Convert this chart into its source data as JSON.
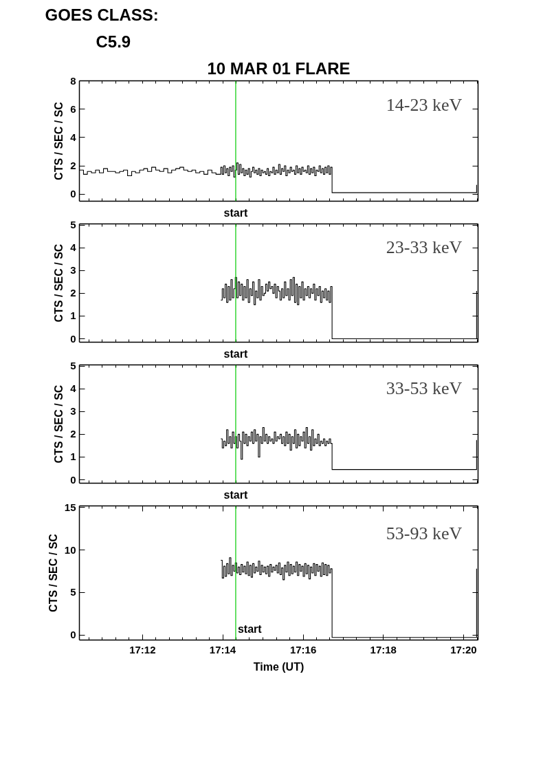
{
  "chart_data": [
    {
      "type": "step",
      "title": "10 MAR 01 FLARE",
      "subtitle": "14-23 keV",
      "ylabel": "CTS / SEC / SC",
      "annotations": [
        "GOES CLASS:",
        "C5.9"
      ],
      "color": "#000000",
      "xlim": [
        17.1738,
        17.3393
      ],
      "ylim": [
        -0.5,
        8
      ],
      "yticks": [
        0,
        2,
        4,
        6,
        8
      ],
      "tick_labels": "y",
      "xticks": [
        {
          "value": 17.1778,
          "label": null
        },
        {
          "value": 17.1833,
          "label": null
        },
        {
          "value": 17.1889,
          "label": null
        },
        {
          "value": 17.1944,
          "label": null
        },
        {
          "value": 17.2,
          "label": null
        },
        {
          "value": 17.2056,
          "label": null
        },
        {
          "value": 17.2111,
          "label": null
        },
        {
          "value": 17.2167,
          "label": null
        },
        {
          "value": 17.2222,
          "label": null
        },
        {
          "value": 17.2278,
          "label": null
        },
        {
          "value": 17.2333,
          "label": null
        },
        {
          "value": 17.2389,
          "label": null
        },
        {
          "value": 17.2444,
          "label": null
        },
        {
          "value": 17.25,
          "label": null
        },
        {
          "value": 17.2556,
          "label": null
        },
        {
          "value": 17.2611,
          "label": null
        },
        {
          "value": 17.2667,
          "label": null
        },
        {
          "value": 17.2722,
          "label": null
        },
        {
          "value": 17.2778,
          "label": null
        },
        {
          "value": 17.2833,
          "label": null
        },
        {
          "value": 17.2889,
          "label": null
        },
        {
          "value": 17.2944,
          "label": null
        },
        {
          "value": 17.3,
          "label": null
        },
        {
          "value": 17.3056,
          "label": null
        },
        {
          "value": 17.3111,
          "label": null
        },
        {
          "value": 17.3167,
          "label": null
        },
        {
          "value": 17.3222,
          "label": null
        },
        {
          "value": 17.3278,
          "label": null
        },
        {
          "value": 17.3333,
          "label": null
        },
        {
          "value": 17.3389,
          "label": null
        }
      ],
      "ref_lines": [
        {
          "axis": "x",
          "value": 17.2387,
          "label": "start",
          "color": "#00cc00"
        }
      ],
      "x": [
        17.1738,
        17.1755,
        17.1771,
        17.1788,
        17.1805,
        17.1821,
        17.1838,
        17.1855,
        17.1871,
        17.1888,
        17.1905,
        17.1921,
        17.1938,
        17.1955,
        17.1971,
        17.1988,
        17.2005,
        17.2021,
        17.2038,
        17.2055,
        17.2071,
        17.2088,
        17.2105,
        17.2121,
        17.2138,
        17.2155,
        17.2171,
        17.2188,
        17.2205,
        17.2221,
        17.2238,
        17.2255,
        17.2271,
        17.2288,
        17.2305,
        17.2325,
        17.2331,
        17.2337,
        17.2343,
        17.2349,
        17.2355,
        17.2361,
        17.2367,
        17.2373,
        17.2379,
        17.2385,
        17.2391,
        17.2397,
        17.2403,
        17.2409,
        17.2415,
        17.2421,
        17.2427,
        17.2433,
        17.2439,
        17.2445,
        17.2451,
        17.2457,
        17.2463,
        17.2469,
        17.2475,
        17.2481,
        17.2487,
        17.2493,
        17.2499,
        17.2505,
        17.2511,
        17.2517,
        17.2523,
        17.2529,
        17.2535,
        17.2541,
        17.2547,
        17.2553,
        17.2559,
        17.2565,
        17.2571,
        17.2577,
        17.2583,
        17.2589,
        17.2595,
        17.2601,
        17.2607,
        17.2613,
        17.2619,
        17.2625,
        17.2631,
        17.2637,
        17.2643,
        17.2649,
        17.2655,
        17.2661,
        17.2667,
        17.2673,
        17.2679,
        17.2685,
        17.2691,
        17.2697,
        17.2703,
        17.2709,
        17.2715,
        17.2721,
        17.2727,
        17.2733,
        17.2739,
        17.2745,
        17.2751,
        17.2757,
        17.2763,
        17.2769,
        17.2775,
        17.2781,
        17.2787,
        17.3387
      ],
      "values": [
        1.7,
        1.4,
        1.6,
        1.5,
        1.7,
        1.5,
        1.8,
        1.6,
        1.6,
        1.5,
        1.6,
        1.7,
        1.3,
        1.6,
        1.5,
        1.7,
        1.8,
        1.6,
        1.9,
        1.7,
        1.6,
        1.8,
        1.5,
        1.7,
        1.8,
        1.9,
        1.7,
        1.6,
        1.7,
        1.5,
        1.6,
        1.4,
        1.7,
        1.5,
        1.4,
        1.9,
        1.4,
        2.0,
        1.5,
        1.8,
        1.3,
        1.9,
        1.6,
        2.0,
        1.2,
        1.7,
        2.2,
        1.4,
        2.1,
        1.5,
        1.8,
        1.3,
        1.7,
        1.4,
        1.8,
        1.2,
        1.6,
        1.9,
        1.5,
        1.7,
        1.4,
        1.8,
        1.3,
        1.7,
        1.5,
        1.6,
        1.4,
        1.8,
        1.3,
        1.6,
        1.5,
        1.9,
        1.4,
        1.7,
        1.5,
        2.1,
        1.4,
        1.8,
        1.6,
        2.0,
        1.3,
        1.7,
        1.5,
        1.9,
        1.6,
        1.7,
        1.4,
        2.0,
        1.5,
        1.8,
        1.4,
        1.9,
        1.6,
        1.7,
        1.5,
        2.0,
        1.4,
        1.8,
        1.5,
        1.9,
        1.3,
        1.7,
        1.6,
        2.0,
        1.5,
        1.8,
        1.4,
        1.9,
        1.5,
        2.0,
        1.4,
        1.9,
        0.1,
        0.65
      ]
    },
    {
      "type": "step",
      "subtitle": "23-33 keV",
      "ylabel": "CTS / SEC / SC",
      "color": "#000000",
      "xlim": [
        17.1738,
        17.3393
      ],
      "ylim": [
        -0.15,
        5.05
      ],
      "yticks": [
        0,
        1,
        2,
        3,
        4,
        5
      ],
      "tick_labels": "y",
      "xticks": [
        {
          "value": 17.1778,
          "label": null
        },
        {
          "value": 17.1833,
          "label": null
        },
        {
          "value": 17.1889,
          "label": null
        },
        {
          "value": 17.1944,
          "label": null
        },
        {
          "value": 17.2,
          "label": null
        },
        {
          "value": 17.2056,
          "label": null
        },
        {
          "value": 17.2111,
          "label": null
        },
        {
          "value": 17.2167,
          "label": null
        },
        {
          "value": 17.2222,
          "label": null
        },
        {
          "value": 17.2278,
          "label": null
        },
        {
          "value": 17.2333,
          "label": null
        },
        {
          "value": 17.2389,
          "label": null
        },
        {
          "value": 17.2444,
          "label": null
        },
        {
          "value": 17.25,
          "label": null
        },
        {
          "value": 17.2556,
          "label": null
        },
        {
          "value": 17.2611,
          "label": null
        },
        {
          "value": 17.2667,
          "label": null
        },
        {
          "value": 17.2722,
          "label": null
        },
        {
          "value": 17.2778,
          "label": null
        },
        {
          "value": 17.2833,
          "label": null
        },
        {
          "value": 17.2889,
          "label": null
        },
        {
          "value": 17.2944,
          "label": null
        },
        {
          "value": 17.3,
          "label": null
        },
        {
          "value": 17.3056,
          "label": null
        },
        {
          "value": 17.3111,
          "label": null
        },
        {
          "value": 17.3167,
          "label": null
        },
        {
          "value": 17.3222,
          "label": null
        },
        {
          "value": 17.3278,
          "label": null
        },
        {
          "value": 17.3333,
          "label": null
        },
        {
          "value": 17.3389,
          "label": null
        }
      ],
      "ref_lines": [
        {
          "axis": "x",
          "value": 17.2387,
          "label": "start",
          "color": "#00cc00"
        }
      ],
      "x": [
        17.2325,
        17.2331,
        17.2337,
        17.2343,
        17.2349,
        17.2355,
        17.2361,
        17.2367,
        17.2373,
        17.2379,
        17.2385,
        17.2391,
        17.2397,
        17.2403,
        17.2409,
        17.2415,
        17.2421,
        17.2427,
        17.2433,
        17.2439,
        17.2445,
        17.2451,
        17.2457,
        17.2463,
        17.2469,
        17.2475,
        17.2481,
        17.2487,
        17.2493,
        17.2499,
        17.2505,
        17.2511,
        17.2517,
        17.2523,
        17.2529,
        17.2535,
        17.2541,
        17.2547,
        17.2553,
        17.2559,
        17.2565,
        17.2571,
        17.2577,
        17.2583,
        17.2589,
        17.2595,
        17.2601,
        17.2607,
        17.2613,
        17.2619,
        17.2625,
        17.2631,
        17.2637,
        17.2643,
        17.2649,
        17.2655,
        17.2661,
        17.2667,
        17.2673,
        17.2679,
        17.2685,
        17.2691,
        17.2697,
        17.2703,
        17.2709,
        17.2715,
        17.2721,
        17.2727,
        17.2733,
        17.2739,
        17.2745,
        17.2751,
        17.2757,
        17.2763,
        17.2769,
        17.2775,
        17.2781,
        17.2787,
        17.3387
      ],
      "values": [
        1.7,
        2.2,
        1.8,
        2.4,
        1.6,
        2.3,
        1.7,
        2.6,
        1.8,
        2.2,
        2.7,
        1.8,
        2.5,
        1.9,
        2.4,
        1.7,
        2.3,
        1.8,
        2.6,
        1.6,
        2.2,
        1.9,
        2.5,
        1.5,
        2.1,
        1.8,
        2.6,
        1.7,
        2.3,
        1.9,
        2.0,
        2.4,
        2.1,
        2.5,
        2.2,
        2.3,
        2.0,
        2.4,
        1.8,
        2.3,
        2.1,
        1.7,
        2.2,
        1.8,
        2.5,
        1.9,
        2.2,
        1.7,
        2.6,
        1.9,
        2.7,
        1.6,
        2.4,
        1.5,
        2.3,
        1.8,
        2.5,
        1.7,
        2.2,
        1.9,
        2.3,
        1.8,
        2.2,
        2.0,
        2.4,
        1.7,
        2.2,
        1.9,
        2.3,
        1.6,
        2.1,
        1.8,
        2.2,
        1.7,
        2.1,
        1.6,
        2.3,
        0.0,
        2.1
      ]
    },
    {
      "type": "step",
      "subtitle": "33-53 keV",
      "ylabel": "CTS / SEC / SC",
      "color": "#000000",
      "xlim": [
        17.1738,
        17.3393
      ],
      "ylim": [
        -0.15,
        5.05
      ],
      "yticks": [
        0,
        1,
        2,
        3,
        4,
        5
      ],
      "tick_labels": "y",
      "xticks": [
        {
          "value": 17.1778,
          "label": null
        },
        {
          "value": 17.1833,
          "label": null
        },
        {
          "value": 17.1889,
          "label": null
        },
        {
          "value": 17.1944,
          "label": null
        },
        {
          "value": 17.2,
          "label": null
        },
        {
          "value": 17.2056,
          "label": null
        },
        {
          "value": 17.2111,
          "label": null
        },
        {
          "value": 17.2167,
          "label": null
        },
        {
          "value": 17.2222,
          "label": null
        },
        {
          "value": 17.2278,
          "label": null
        },
        {
          "value": 17.2333,
          "label": null
        },
        {
          "value": 17.2389,
          "label": null
        },
        {
          "value": 17.2444,
          "label": null
        },
        {
          "value": 17.25,
          "label": null
        },
        {
          "value": 17.2556,
          "label": null
        },
        {
          "value": 17.2611,
          "label": null
        },
        {
          "value": 17.2667,
          "label": null
        },
        {
          "value": 17.2722,
          "label": null
        },
        {
          "value": 17.2778,
          "label": null
        },
        {
          "value": 17.2833,
          "label": null
        },
        {
          "value": 17.2889,
          "label": null
        },
        {
          "value": 17.2944,
          "label": null
        },
        {
          "value": 17.3,
          "label": null
        },
        {
          "value": 17.3056,
          "label": null
        },
        {
          "value": 17.3111,
          "label": null
        },
        {
          "value": 17.3167,
          "label": null
        },
        {
          "value": 17.3222,
          "label": null
        },
        {
          "value": 17.3278,
          "label": null
        },
        {
          "value": 17.3333,
          "label": null
        },
        {
          "value": 17.3389,
          "label": null
        }
      ],
      "ref_lines": [
        {
          "axis": "x",
          "value": 17.2387,
          "label": "start",
          "color": "#00cc00"
        }
      ],
      "x": [
        17.2325,
        17.2331,
        17.2337,
        17.2343,
        17.2349,
        17.2355,
        17.2361,
        17.2367,
        17.2373,
        17.2379,
        17.2385,
        17.2391,
        17.2397,
        17.2403,
        17.2409,
        17.2415,
        17.2421,
        17.2427,
        17.2433,
        17.2439,
        17.2445,
        17.2451,
        17.2457,
        17.2463,
        17.2469,
        17.2475,
        17.2481,
        17.2487,
        17.2493,
        17.2499,
        17.2505,
        17.2511,
        17.2517,
        17.2523,
        17.2529,
        17.2535,
        17.2541,
        17.2547,
        17.2553,
        17.2559,
        17.2565,
        17.2571,
        17.2577,
        17.2583,
        17.2589,
        17.2595,
        17.2601,
        17.2607,
        17.2613,
        17.2619,
        17.2625,
        17.2631,
        17.2637,
        17.2643,
        17.2649,
        17.2655,
        17.2661,
        17.2667,
        17.2673,
        17.2679,
        17.2685,
        17.2691,
        17.2697,
        17.2703,
        17.2709,
        17.2715,
        17.2721,
        17.2727,
        17.2733,
        17.2739,
        17.2745,
        17.2751,
        17.2757,
        17.2763,
        17.2769,
        17.2775,
        17.2781,
        17.2787,
        17.3387
      ],
      "values": [
        1.8,
        1.4,
        1.7,
        1.5,
        2.2,
        1.6,
        1.9,
        1.4,
        2.1,
        1.6,
        1.9,
        1.4,
        2.0,
        1.7,
        0.9,
        2.1,
        1.6,
        2.0,
        1.5,
        1.9,
        1.7,
        2.1,
        1.6,
        2.2,
        1.7,
        2.0,
        1.0,
        1.9,
        1.6,
        2.3,
        1.7,
        2.0,
        1.6,
        1.9,
        1.7,
        1.8,
        1.6,
        2.1,
        1.7,
        1.9,
        1.8,
        2.0,
        1.6,
        1.9,
        1.5,
        2.1,
        1.6,
        2.0,
        1.3,
        1.9,
        1.6,
        2.2,
        1.4,
        2.0,
        1.5,
        1.9,
        1.7,
        2.1,
        1.4,
        2.3,
        1.6,
        1.9,
        1.3,
        2.2,
        1.5,
        1.8,
        1.6,
        2.0,
        1.5,
        1.7,
        1.6,
        1.8,
        1.5,
        1.7,
        1.6,
        1.8,
        1.6,
        0.45,
        1.75
      ]
    },
    {
      "type": "step",
      "subtitle": "53-93 keV",
      "ylabel": "CTS / SEC / SC",
      "xlabel": "Time (UT)",
      "color": "#000000",
      "xlim": [
        17.1738,
        17.3393
      ],
      "ylim": [
        -0.6,
        15.2
      ],
      "yticks": [
        0,
        5,
        10,
        15
      ],
      "xticks": [
        {
          "value": 17.1778,
          "label": null
        },
        {
          "value": 17.1833,
          "label": null
        },
        {
          "value": 17.1889,
          "label": null
        },
        {
          "value": 17.1944,
          "label": null
        },
        {
          "value": 17.2,
          "label": "17:12"
        },
        {
          "value": 17.2056,
          "label": null
        },
        {
          "value": 17.2111,
          "label": null
        },
        {
          "value": 17.2167,
          "label": null
        },
        {
          "value": 17.2222,
          "label": null
        },
        {
          "value": 17.2278,
          "label": null
        },
        {
          "value": 17.2333,
          "label": "17:14"
        },
        {
          "value": 17.2389,
          "label": null
        },
        {
          "value": 17.2444,
          "label": null
        },
        {
          "value": 17.25,
          "label": null
        },
        {
          "value": 17.2556,
          "label": null
        },
        {
          "value": 17.2611,
          "label": null
        },
        {
          "value": 17.2667,
          "label": "17:16"
        },
        {
          "value": 17.2722,
          "label": null
        },
        {
          "value": 17.2778,
          "label": null
        },
        {
          "value": 17.2833,
          "label": null
        },
        {
          "value": 17.2889,
          "label": null
        },
        {
          "value": 17.2944,
          "label": null
        },
        {
          "value": 17.3,
          "label": "17:18"
        },
        {
          "value": 17.3056,
          "label": null
        },
        {
          "value": 17.3111,
          "label": null
        },
        {
          "value": 17.3167,
          "label": null
        },
        {
          "value": 17.3222,
          "label": null
        },
        {
          "value": 17.3278,
          "label": null
        },
        {
          "value": 17.3333,
          "label": "17:20"
        },
        {
          "value": 17.3389,
          "label": null
        }
      ],
      "ref_lines": [
        {
          "axis": "x",
          "value": 17.2387,
          "label": "start",
          "color": "#00cc00"
        }
      ],
      "x": [
        17.2325,
        17.2331,
        17.2337,
        17.2343,
        17.2349,
        17.2355,
        17.2361,
        17.2367,
        17.2373,
        17.2379,
        17.2385,
        17.2391,
        17.2397,
        17.2403,
        17.2409,
        17.2415,
        17.2421,
        17.2427,
        17.2433,
        17.2439,
        17.2445,
        17.2451,
        17.2457,
        17.2463,
        17.2469,
        17.2475,
        17.2481,
        17.2487,
        17.2493,
        17.2499,
        17.2505,
        17.2511,
        17.2517,
        17.2523,
        17.2529,
        17.2535,
        17.2541,
        17.2547,
        17.2553,
        17.2559,
        17.2565,
        17.2571,
        17.2577,
        17.2583,
        17.2589,
        17.2595,
        17.2601,
        17.2607,
        17.2613,
        17.2619,
        17.2625,
        17.2631,
        17.2637,
        17.2643,
        17.2649,
        17.2655,
        17.2661,
        17.2667,
        17.2673,
        17.2679,
        17.2685,
        17.2691,
        17.2697,
        17.2703,
        17.2709,
        17.2715,
        17.2721,
        17.2727,
        17.2733,
        17.2739,
        17.2745,
        17.2751,
        17.2757,
        17.2763,
        17.2769,
        17.2775,
        17.2781,
        17.2787,
        17.3387
      ],
      "values": [
        8.8,
        6.7,
        8.1,
        6.9,
        8.4,
        7.2,
        9.1,
        7.0,
        8.2,
        7.5,
        8.5,
        7.3,
        8.0,
        7.1,
        8.3,
        7.4,
        8.1,
        7.2,
        8.6,
        7.0,
        8.2,
        6.8,
        8.4,
        7.3,
        8.0,
        7.5,
        8.7,
        7.1,
        8.2,
        7.4,
        8.0,
        7.2,
        8.1,
        6.9,
        8.3,
        7.4,
        8.0,
        7.6,
        8.2,
        7.3,
        8.5,
        7.1,
        7.9,
        6.5,
        8.2,
        7.4,
        8.6,
        7.0,
        8.3,
        7.2,
        8.1,
        7.4,
        8.6,
        7.0,
        8.3,
        7.5,
        8.1,
        6.9,
        8.4,
        7.2,
        8.2,
        6.6,
        8.0,
        7.3,
        8.4,
        7.0,
        8.3,
        7.5,
        8.1,
        6.9,
        8.5,
        7.1,
        8.3,
        7.0,
        8.2,
        7.3,
        7.8,
        -0.3,
        7.8
      ]
    }
  ]
}
